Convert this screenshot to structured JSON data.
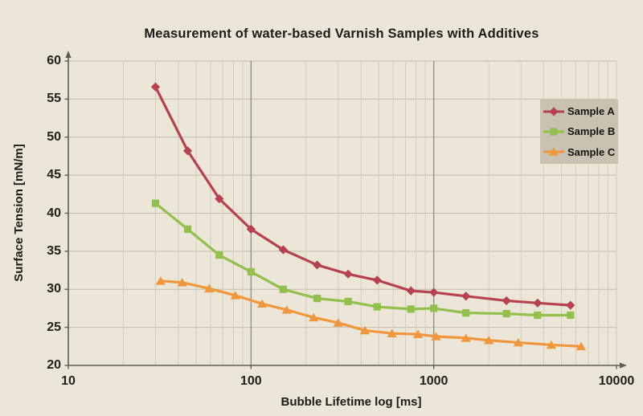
{
  "colors": {
    "background": "#ece6d8",
    "grid_minor": "#d2ccbe",
    "grid_horizontal": "#c2bcae",
    "grid_major": "#8f8a7e",
    "axis": "#5f5d55",
    "text": "#1d1c18",
    "legend_background": "#c9c2b3",
    "sample_a": "#b5424e",
    "sample_b": "#93bf4d",
    "sample_c": "#f0973d"
  },
  "chart_data": {
    "type": "line",
    "title": "Measurement of water-based Varnish Samples with Additives",
    "xlabel": "Bubble Lifetime log [ms]",
    "ylabel": "Surface Tension [mN/m]",
    "x_scale": "log",
    "xlim": [
      10,
      10000
    ],
    "ylim": [
      20,
      60
    ],
    "x_ticks": [
      10,
      100,
      1000,
      10000
    ],
    "y_ticks": [
      20,
      25,
      30,
      35,
      40,
      45,
      50,
      55,
      60
    ],
    "grid": true,
    "legend_position": "upper-right",
    "series": [
      {
        "name": "Sample A",
        "marker": "diamond",
        "color": "#b5424e",
        "x": [
          30,
          45,
          67,
          100,
          150,
          230,
          340,
          490,
          750,
          1000,
          1500,
          2500,
          3700,
          5600
        ],
        "y": [
          56.6,
          48.2,
          41.9,
          37.9,
          35.2,
          33.2,
          32.0,
          31.2,
          29.8,
          29.6,
          29.1,
          28.5,
          28.2,
          27.9
        ]
      },
      {
        "name": "Sample B",
        "marker": "square",
        "color": "#93bf4d",
        "x": [
          30,
          45,
          67,
          100,
          150,
          230,
          340,
          490,
          750,
          1000,
          1500,
          2500,
          3700,
          5600
        ],
        "y": [
          41.3,
          37.9,
          34.5,
          32.3,
          30.0,
          28.8,
          28.4,
          27.7,
          27.4,
          27.5,
          26.9,
          26.8,
          26.6,
          26.6
        ]
      },
      {
        "name": "Sample C",
        "marker": "triangle",
        "color": "#f0973d",
        "x": [
          32,
          42,
          59,
          82,
          115,
          157,
          220,
          300,
          420,
          590,
          820,
          1030,
          1500,
          2000,
          2900,
          4400,
          6400
        ],
        "y": [
          31.1,
          30.9,
          30.1,
          29.2,
          28.1,
          27.3,
          26.3,
          25.6,
          24.6,
          24.2,
          24.1,
          23.8,
          23.6,
          23.3,
          23.0,
          22.7,
          22.5
        ]
      }
    ]
  }
}
